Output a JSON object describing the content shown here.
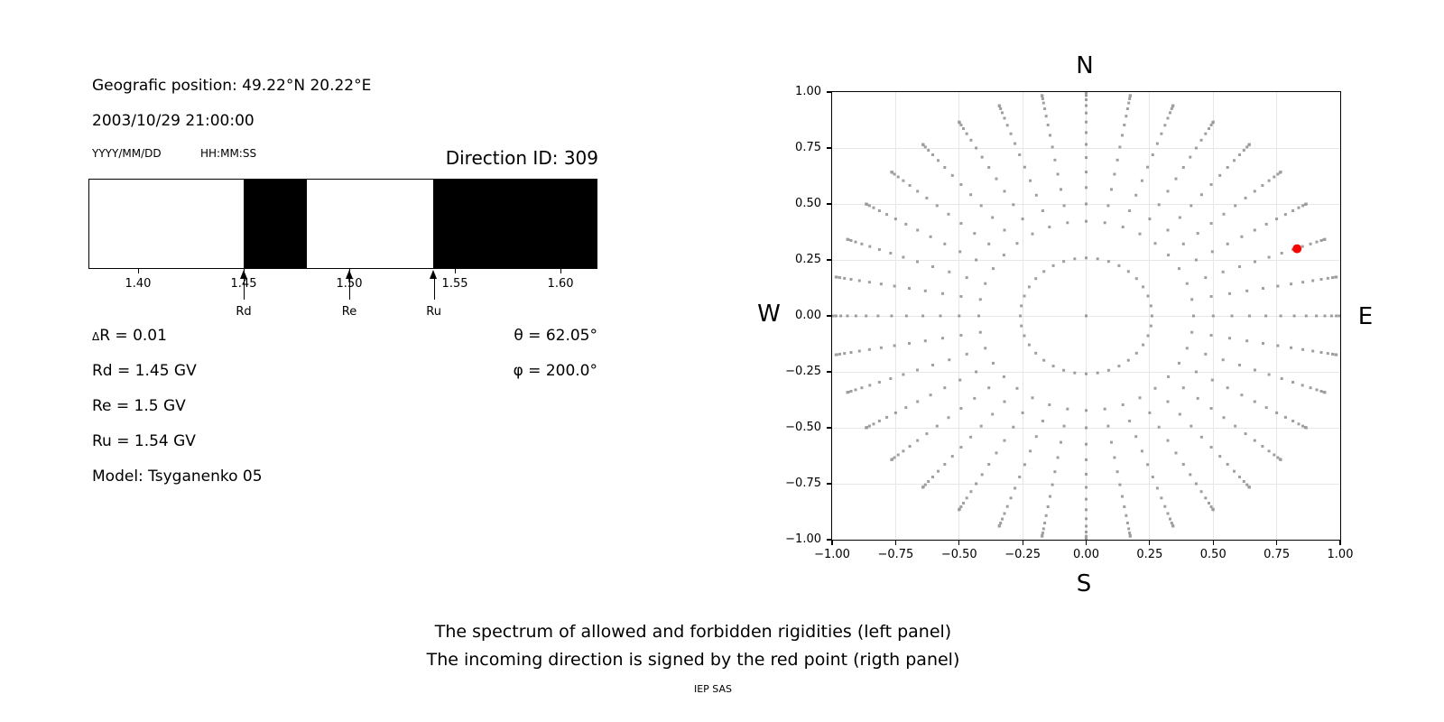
{
  "header": {
    "geo_position": "Geografic position: 49.22°N 20.22°E",
    "datetime": "2003/10/29 21:00:00",
    "date_format_label": "YYYY/MM/DD",
    "time_format_label": "HH:MM:SS",
    "direction_id": "Direction ID: 309"
  },
  "info": {
    "delta_symbol": "Δ",
    "delta_rest": "R = 0.01",
    "rd_line": "Rd = 1.45 GV",
    "re_line": "Re = 1.5 GV",
    "ru_line": "Ru = 1.54 GV",
    "model_line": "Model: Tsyganenko 05",
    "theta_line": "θ = 62.05°",
    "phi_line": "φ = 200.0°"
  },
  "captions": {
    "line1": "The spectrum of allowed and forbidden rigidities (left panel)",
    "line2": "The incoming direction is signed by the red point (rigth panel)",
    "credit": "IEP SAS"
  },
  "chart_data": [
    {
      "type": "bar",
      "subtype": "rigidity-band-spectrum",
      "description": "Allowed (white) and forbidden (black) rigidity bands, GV",
      "xlim": [
        1.3765,
        1.6175
      ],
      "x_ticks": [
        1.4,
        1.45,
        1.5,
        1.55,
        1.6
      ],
      "x_tick_labels": [
        "1.40",
        "1.45",
        "1.50",
        "1.55",
        "1.60"
      ],
      "allowed_color": "#ffffff",
      "forbidden_color": "#000000",
      "forbidden_bands": [
        [
          1.45,
          1.48
        ],
        [
          1.54,
          1.6175
        ]
      ],
      "allowed_bands": [
        [
          1.3765,
          1.45
        ],
        [
          1.48,
          1.54
        ]
      ],
      "markers": [
        {
          "label": "Rd",
          "value": 1.45
        },
        {
          "label": "Re",
          "value": 1.5
        },
        {
          "label": "Ru",
          "value": 1.54
        }
      ],
      "delta_R_GV": 0.01,
      "Rd_GV": 1.45,
      "Re_GV": 1.5,
      "Ru_GV": 1.54,
      "model": "Tsyganenko 05"
    },
    {
      "type": "scatter",
      "subtype": "incoming-direction-grid",
      "compass": {
        "top": "N",
        "bottom": "S",
        "left": "W",
        "right": "E"
      },
      "xlim": [
        -1,
        1
      ],
      "ylim": [
        -1,
        1
      ],
      "ticks": [
        -1,
        -0.75,
        -0.5,
        -0.25,
        0,
        0.25,
        0.5,
        0.75,
        1
      ],
      "x_tick_labels": [
        "−1.00",
        "−0.75",
        "−0.50",
        "−0.25",
        "0.00",
        "0.25",
        "0.50",
        "0.75",
        "1.00"
      ],
      "y_tick_labels": [
        "−1.00",
        "−0.75",
        "−0.50",
        "−0.25",
        "0.00",
        "0.25",
        "0.50",
        "0.75",
        "1.00"
      ],
      "grid": true,
      "grid_color": "#e7e7e7",
      "dot_color": "#7f7f7f",
      "dot_alpha": 0.75,
      "dot_size_px": 3,
      "rays": {
        "azimuth_start_deg": 0,
        "azimuth_step_deg": 10,
        "azimuth_count": 36,
        "zenith_deg": [
          15,
          25,
          30,
          35,
          40,
          45,
          50,
          55,
          60,
          65,
          70,
          75,
          80,
          85,
          87.5,
          90
        ],
        "radius_rule": "r = sin(zenith)"
      },
      "center_dot": true,
      "red_point": {
        "x": 0.83,
        "y": 0.3,
        "color": "#ff0000",
        "radius_px": 5,
        "zenith_deg": 62.05,
        "meaning": "incoming direction"
      }
    }
  ]
}
